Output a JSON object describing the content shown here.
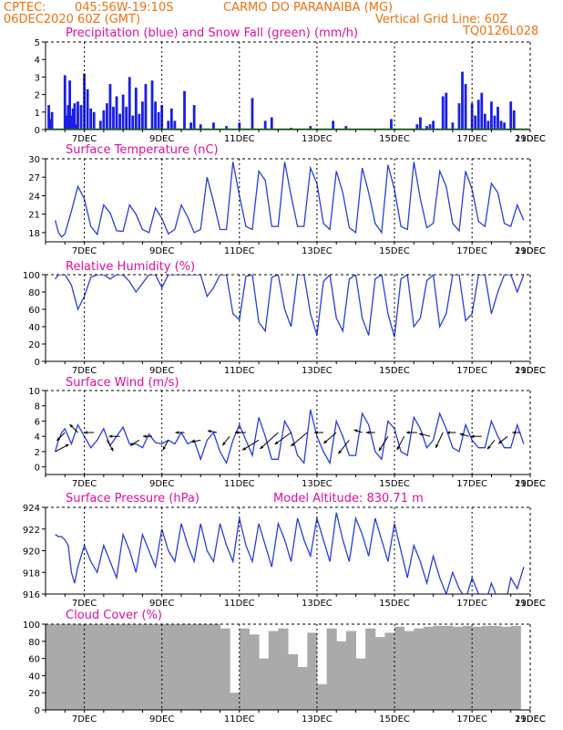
{
  "header": {
    "source": "CPTEC:",
    "location": "045:56W-19:10S",
    "station": "CARMO DO PARANAIBA (MG)",
    "run": "06DEC2020 60Z (GMT)",
    "vgrid": "Vertical Grid Line: 60Z",
    "code": "TQ0126L028"
  },
  "colors": {
    "header": "#f07010",
    "title": "#e0109a",
    "series": "#2a3de0",
    "precip": "#1a1ee6",
    "snow": "#22aa22",
    "cloud": "#aaaaaa"
  },
  "chart_data": [
    {
      "id": "precip",
      "type": "bar",
      "title": "Precipitation (blue) and Snow Fall (green) (mm/h)",
      "ylim": [
        0,
        5
      ],
      "yticks": [
        "0",
        "1",
        "2",
        "3",
        "4",
        "5"
      ],
      "xticks": [
        "7DEC",
        "9DEC",
        "11DEC",
        "13DEC",
        "15DEC",
        "17DEC",
        "19DEC",
        "21DEC"
      ],
      "x_unit": "hours after 06DEC 00Z",
      "x": [
        2,
        3,
        4,
        12,
        13,
        14,
        15,
        16,
        17,
        18,
        19,
        20,
        22,
        24,
        26,
        28,
        30,
        34,
        36,
        38,
        40,
        42,
        44,
        46,
        48,
        50,
        52,
        54,
        56,
        58,
        60,
        62,
        66,
        68,
        70,
        72,
        76,
        78,
        80,
        86,
        90,
        92,
        96,
        104,
        112,
        120,
        128,
        136,
        140,
        152,
        164,
        178,
        186,
        214,
        230,
        232,
        236,
        238,
        240,
        246,
        248,
        252,
        256,
        258,
        260,
        264,
        266,
        268,
        270,
        272,
        274,
        276,
        278,
        280,
        282,
        284,
        288,
        290
      ],
      "values": [
        1.4,
        0.6,
        1.0,
        3.1,
        0.8,
        1.4,
        2.8,
        0.8,
        1.2,
        1.5,
        0.3,
        1.6,
        1.4,
        3.2,
        2.3,
        1.2,
        1.0,
        0.5,
        1.1,
        1.5,
        2.6,
        1.3,
        1.9,
        0.9,
        2.0,
        1.3,
        3.0,
        0.8,
        2.4,
        0.9,
        1.6,
        2.6,
        2.8,
        1.6,
        1.0,
        1.4,
        0.5,
        1.2,
        0.5,
        2.2,
        0.4,
        1.4,
        0.3,
        0.4,
        0.2,
        0.4,
        1.8,
        0.5,
        0.7,
        0.1,
        0.2,
        0.5,
        0.2,
        0.6,
        0.3,
        0.7,
        0.2,
        0.3,
        0.5,
        1.9,
        2.1,
        0.4,
        1.5,
        3.3,
        2.6,
        1.5,
        0.8,
        1.7,
        2.1,
        0.9,
        0.5,
        1.6,
        0.8,
        1.3,
        0.5,
        0.4,
        1.6,
        1.1
      ]
    },
    {
      "id": "temp",
      "type": "line",
      "title": "Surface Temperature (nC)",
      "ylim": [
        16.5,
        30
      ],
      "yticks": [
        "18",
        "21",
        "24",
        "27",
        "30"
      ],
      "xticks": [
        "7DEC",
        "9DEC",
        "11DEC",
        "13DEC",
        "15DEC",
        "17DEC",
        "19DEC",
        "21DEC"
      ],
      "x_unit": "hours after 06DEC 00Z",
      "x": [
        6,
        8,
        10,
        12,
        16,
        20,
        24,
        28,
        32,
        36,
        40,
        44,
        48,
        52,
        56,
        60,
        64,
        68,
        72,
        76,
        80,
        84,
        88,
        92,
        96,
        100,
        104,
        108,
        112,
        116,
        120,
        124,
        128,
        132,
        136,
        140,
        144,
        148,
        152,
        156,
        160,
        164,
        168,
        172,
        176,
        180,
        184,
        188,
        192,
        196,
        200,
        204,
        208,
        212,
        216,
        220,
        224,
        228,
        232,
        236,
        240,
        244,
        248,
        252,
        256,
        260,
        264,
        268,
        272,
        276,
        280,
        284,
        288,
        292,
        296
      ],
      "values": [
        20.0,
        18.0,
        17.3,
        17.8,
        21.5,
        25.5,
        23.5,
        19.0,
        17.7,
        22.5,
        21.2,
        18.3,
        18.2,
        22.5,
        21.0,
        18.5,
        18.0,
        22.0,
        20.3,
        17.8,
        18.5,
        22.5,
        20.5,
        18.0,
        18.5,
        27.0,
        23.0,
        18.5,
        18.5,
        29.5,
        24.0,
        19.0,
        18.5,
        28.0,
        26.5,
        19.0,
        19.0,
        29.5,
        24.0,
        19.0,
        19.0,
        28.5,
        26.0,
        19.5,
        18.5,
        28.0,
        24.5,
        18.8,
        18.0,
        28.5,
        24.5,
        19.5,
        18.0,
        29.0,
        25.0,
        19.0,
        18.5,
        29.5,
        23.5,
        18.8,
        19.5,
        28.0,
        25.5,
        19.5,
        18.3,
        28.0,
        25.0,
        19.8,
        19.0,
        26.0,
        24.5,
        19.5,
        19.0,
        22.5,
        20.0
      ]
    },
    {
      "id": "rh",
      "type": "line",
      "title": "Relative Humidity (%)",
      "ylim": [
        0,
        100
      ],
      "yticks": [
        "0",
        "20",
        "40",
        "60",
        "80",
        "100"
      ],
      "xticks": [
        "7DEC",
        "9DEC",
        "11DEC",
        "13DEC",
        "15DEC",
        "17DEC",
        "19DEC",
        "21DEC"
      ],
      "x_unit": "hours after 06DEC 00Z",
      "x": [
        6,
        8,
        10,
        12,
        16,
        20,
        24,
        28,
        32,
        36,
        40,
        44,
        48,
        52,
        56,
        60,
        64,
        68,
        72,
        76,
        80,
        84,
        88,
        92,
        96,
        100,
        104,
        108,
        112,
        116,
        120,
        124,
        128,
        132,
        136,
        140,
        144,
        148,
        152,
        156,
        160,
        164,
        168,
        172,
        176,
        180,
        184,
        188,
        192,
        196,
        200,
        204,
        208,
        212,
        216,
        220,
        224,
        228,
        232,
        236,
        240,
        244,
        248,
        252,
        256,
        260,
        264,
        268,
        272,
        276,
        280,
        284,
        288,
        292,
        296
      ],
      "values": [
        95,
        100,
        100,
        100,
        88,
        60,
        75,
        97,
        100,
        100,
        95,
        100,
        100,
        92,
        80,
        90,
        100,
        100,
        85,
        100,
        100,
        100,
        100,
        100,
        100,
        75,
        85,
        100,
        100,
        55,
        48,
        98,
        100,
        45,
        35,
        97,
        100,
        60,
        40,
        100,
        100,
        55,
        30,
        92,
        100,
        50,
        35,
        95,
        100,
        50,
        30,
        95,
        100,
        55,
        28,
        95,
        100,
        40,
        50,
        93,
        100,
        40,
        55,
        100,
        100,
        47,
        55,
        100,
        100,
        55,
        80,
        100,
        100,
        80,
        100
      ]
    },
    {
      "id": "wind",
      "type": "line",
      "title": "Surface Wind (m/s)",
      "ylim": [
        -1,
        10
      ],
      "yticks": [
        "0",
        "2",
        "4",
        "6",
        "8",
        "10"
      ],
      "xticks": [
        "7DEC",
        "9DEC",
        "11DEC",
        "13DEC",
        "15DEC",
        "17DEC",
        "19DEC",
        "21DEC"
      ],
      "x_unit": "hours after 06DEC 00Z",
      "x": [
        6,
        8,
        10,
        12,
        16,
        20,
        24,
        28,
        32,
        36,
        40,
        44,
        48,
        52,
        56,
        60,
        64,
        68,
        72,
        76,
        80,
        84,
        88,
        92,
        96,
        100,
        104,
        108,
        112,
        116,
        120,
        124,
        128,
        132,
        136,
        140,
        144,
        148,
        152,
        156,
        160,
        164,
        168,
        172,
        176,
        180,
        184,
        188,
        192,
        196,
        200,
        204,
        208,
        212,
        216,
        220,
        224,
        228,
        232,
        236,
        240,
        244,
        248,
        252,
        256,
        260,
        264,
        268,
        272,
        276,
        280,
        284,
        288,
        292,
        296
      ],
      "values": [
        2.0,
        3.5,
        4.5,
        5.0,
        3.0,
        5.5,
        4.0,
        2.5,
        3.5,
        5.0,
        2.8,
        4.0,
        5.2,
        3.0,
        3.0,
        2.5,
        4.3,
        3.2,
        3.0,
        3.5,
        3.0,
        4.5,
        3.0,
        3.5,
        1.0,
        3.5,
        4.5,
        2.0,
        0.5,
        3.5,
        5.5,
        3.5,
        1.5,
        6.5,
        4.0,
        1.0,
        1.0,
        6.0,
        4.5,
        1.5,
        0.5,
        7.5,
        4.0,
        2.0,
        0.5,
        6.0,
        4.0,
        1.5,
        1.5,
        7.0,
        5.5,
        2.0,
        1.0,
        6.0,
        5.0,
        2.0,
        1.5,
        6.5,
        5.0,
        2.5,
        3.5,
        7.0,
        5.0,
        2.5,
        2.0,
        5.5,
        3.5,
        2.5,
        2.5,
        6.0,
        4.0,
        2.5,
        2.5,
        5.5,
        3.0
      ],
      "barbs": [
        {
          "x": 6,
          "y": 2,
          "dx": 15,
          "dy": -8
        },
        {
          "x": 12,
          "y": 4.5,
          "dx": -9,
          "dy": 9
        },
        {
          "x": 20,
          "y": 4.5,
          "dx": -9,
          "dy": -9
        },
        {
          "x": 30,
          "y": 4.5,
          "dx": -11,
          "dy": 0
        },
        {
          "x": 38,
          "y": 3.5,
          "dx": 7,
          "dy": 12
        },
        {
          "x": 46,
          "y": 4,
          "dx": -12,
          "dy": 0
        },
        {
          "x": 58,
          "y": 3.5,
          "dx": -10,
          "dy": 6
        },
        {
          "x": 66,
          "y": 4,
          "dx": -10,
          "dy": 0
        },
        {
          "x": 76,
          "y": 3.5,
          "dx": -6,
          "dy": 11
        },
        {
          "x": 86,
          "y": 4.5,
          "dx": -10,
          "dy": 0
        },
        {
          "x": 96,
          "y": 3.5,
          "dx": -10,
          "dy": 2
        },
        {
          "x": 106,
          "y": 4.5,
          "dx": -10,
          "dy": -2
        },
        {
          "x": 114,
          "y": 4,
          "dx": -8,
          "dy": 10
        },
        {
          "x": 124,
          "y": 4.5,
          "dx": -12,
          "dy": 0
        },
        {
          "x": 132,
          "y": 3.5,
          "dx": -18,
          "dy": 11
        },
        {
          "x": 144,
          "y": 4.5,
          "dx": -20,
          "dy": 18
        },
        {
          "x": 152,
          "y": 4.5,
          "dx": -18,
          "dy": 13
        },
        {
          "x": 162,
          "y": 4.5,
          "dx": -18,
          "dy": 15
        },
        {
          "x": 172,
          "y": 4.5,
          "dx": -10,
          "dy": 0
        },
        {
          "x": 180,
          "y": 4.5,
          "dx": -14,
          "dy": 12
        },
        {
          "x": 188,
          "y": 3.5,
          "dx": -12,
          "dy": 15
        },
        {
          "x": 196,
          "y": 4.5,
          "dx": -9,
          "dy": -3
        },
        {
          "x": 204,
          "y": 4.5,
          "dx": -10,
          "dy": 0
        },
        {
          "x": 212,
          "y": 4,
          "dx": -10,
          "dy": 16
        },
        {
          "x": 222,
          "y": 4,
          "dx": -8,
          "dy": 15
        },
        {
          "x": 230,
          "y": 4.5,
          "dx": -12,
          "dy": 0
        },
        {
          "x": 238,
          "y": 4,
          "dx": -12,
          "dy": -3
        },
        {
          "x": 246,
          "y": 4.5,
          "dx": -8,
          "dy": 17
        },
        {
          "x": 254,
          "y": 4.5,
          "dx": -10,
          "dy": 0
        },
        {
          "x": 262,
          "y": 4,
          "dx": -10,
          "dy": -3
        },
        {
          "x": 270,
          "y": 4,
          "dx": -12,
          "dy": 0
        },
        {
          "x": 278,
          "y": 3.5,
          "dx": -8,
          "dy": 10
        },
        {
          "x": 286,
          "y": 4,
          "dx": -10,
          "dy": 8
        },
        {
          "x": 294,
          "y": 4.5,
          "dx": -9,
          "dy": 0
        }
      ]
    },
    {
      "id": "pressure",
      "type": "line",
      "title": "Surface Pressure (hPa)",
      "annotation": "Model Altitude: 830.71 m",
      "ylim": [
        916,
        924
      ],
      "yticks": [
        "916",
        "918",
        "920",
        "922",
        "924"
      ],
      "xticks": [
        "7DEC",
        "9DEC",
        "11DEC",
        "13DEC",
        "15DEC",
        "17DEC",
        "19DEC",
        "21DEC"
      ],
      "x_unit": "hours after 06DEC 00Z",
      "x": [
        6,
        8,
        10,
        12,
        14,
        16,
        18,
        20,
        24,
        28,
        32,
        36,
        40,
        44,
        48,
        52,
        56,
        60,
        64,
        68,
        72,
        76,
        80,
        84,
        88,
        92,
        96,
        100,
        104,
        108,
        112,
        116,
        120,
        124,
        128,
        132,
        136,
        140,
        144,
        148,
        152,
        156,
        160,
        164,
        168,
        172,
        176,
        180,
        184,
        188,
        192,
        196,
        200,
        204,
        208,
        212,
        216,
        220,
        224,
        228,
        232,
        236,
        240,
        244,
        248,
        252,
        256,
        260,
        264,
        268,
        272,
        276,
        280,
        284,
        288,
        292,
        296
      ],
      "values": [
        921.5,
        921.3,
        921.3,
        921.0,
        920.5,
        918.0,
        917.0,
        918.5,
        920.5,
        919.0,
        918.0,
        920.5,
        919.0,
        917.5,
        921.5,
        920.0,
        918.0,
        921.5,
        920.0,
        918.5,
        922.0,
        920.0,
        919.0,
        922.5,
        920.5,
        919.0,
        922.5,
        920.0,
        919.0,
        922.5,
        920.5,
        919.0,
        923.0,
        920.5,
        919.0,
        922.5,
        920.5,
        918.5,
        922.5,
        921.0,
        919.0,
        923.0,
        921.0,
        919.5,
        923.0,
        921.0,
        919.0,
        923.5,
        921.0,
        919.0,
        923.0,
        921.5,
        919.5,
        923.0,
        921.0,
        919.0,
        922.5,
        920.0,
        917.5,
        920.5,
        919.0,
        917.0,
        919.5,
        917.5,
        916.0,
        918.0,
        916.5,
        915.5,
        917.5,
        916.0,
        915.0,
        917.0,
        915.5,
        914.5,
        917.5,
        916.5,
        918.5
      ]
    },
    {
      "id": "cloud",
      "type": "bar",
      "title": "Cloud Cover (%)",
      "ylim": [
        0,
        100
      ],
      "yticks": [
        "0",
        "20",
        "40",
        "60",
        "80",
        "100"
      ],
      "xticks": [
        "7DEC",
        "9DEC",
        "11DEC",
        "13DEC",
        "15DEC",
        "17DEC",
        "19DEC",
        "21DEC"
      ],
      "x_unit": "hours after 06DEC 00Z",
      "x": [
        6,
        12,
        18,
        24,
        30,
        36,
        42,
        48,
        54,
        60,
        66,
        72,
        78,
        84,
        90,
        96,
        102,
        108,
        114,
        120,
        126,
        132,
        138,
        144,
        150,
        156,
        162,
        168,
        174,
        180,
        186,
        192,
        198,
        204,
        210,
        216,
        222,
        228,
        234,
        240,
        246,
        252,
        258,
        264,
        270,
        276,
        282,
        288,
        294
      ],
      "values": [
        100,
        100,
        100,
        100,
        100,
        100,
        100,
        100,
        100,
        100,
        100,
        100,
        100,
        100,
        100,
        100,
        100,
        100,
        95,
        20,
        95,
        88,
        60,
        92,
        95,
        65,
        50,
        90,
        30,
        95,
        80,
        92,
        60,
        95,
        85,
        90,
        97,
        92,
        95,
        97,
        98,
        98,
        97,
        98,
        97,
        98,
        98,
        97,
        98
      ]
    }
  ]
}
